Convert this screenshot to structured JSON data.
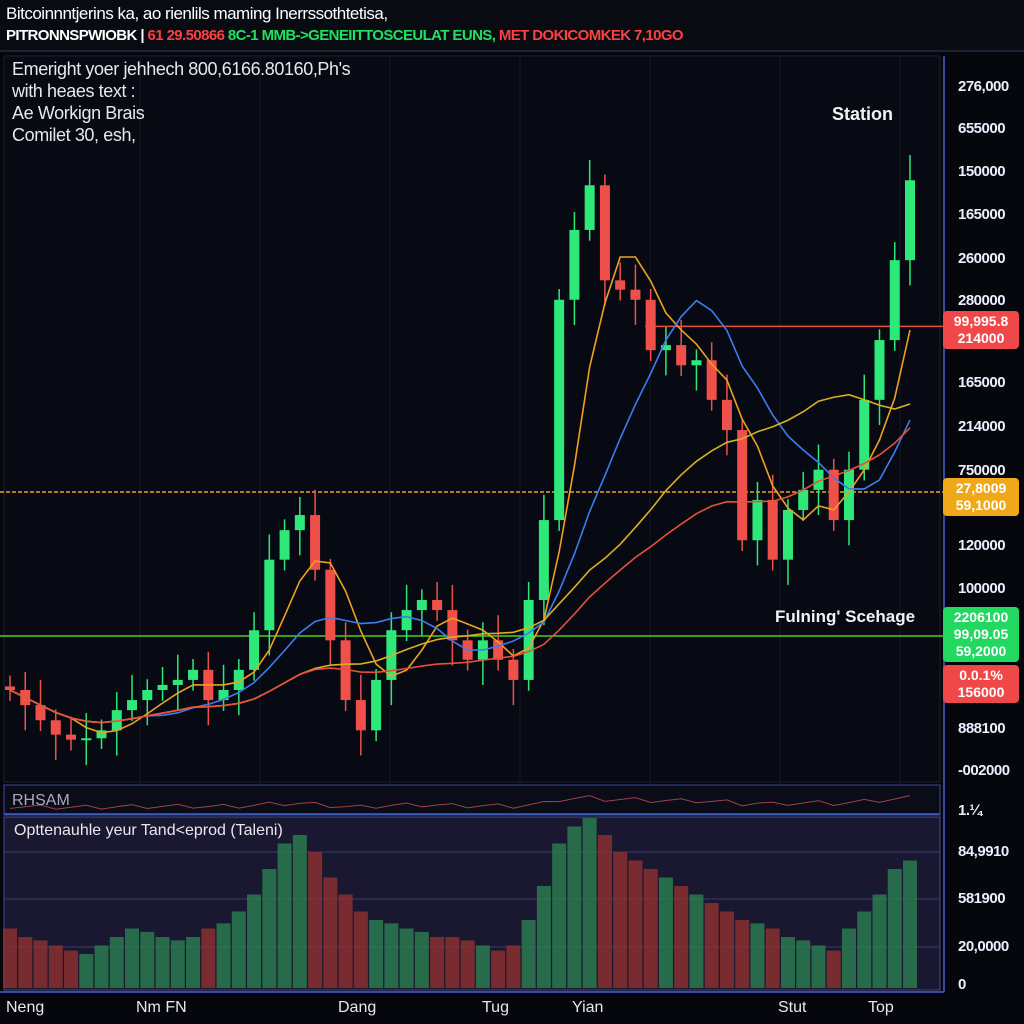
{
  "header": {
    "title": "Bitcoinnntjerins ka, ao rienlils maming Inerrssothtetisa,",
    "ticker": "PITRONNSPWIOBK |",
    "ticker_red": "61 29.50866",
    "ticker_green": "8C-1 MMB->GENEIITTOSCEULAT EUNS,",
    "ticker_red2": "MET DOKICOMKEK 7,10GO"
  },
  "info": {
    "line1": "Emeright yoer jehhech 800,6166.80160,Ph's",
    "line2": "with heaes text :",
    "line3": "Ae Workign Brais",
    "line4": "Comilet 30, esh,"
  },
  "annotations": {
    "station": "Station",
    "funding": "Fulning' Scehage"
  },
  "colors": {
    "up": "#2ee87a",
    "down": "#f0504a",
    "ma_fast": "#f0a020",
    "ma_blue": "#3d7cf0",
    "ma_gold": "#d8b020",
    "ma_red": "#e8503a",
    "bg": "#05070d"
  },
  "price_axis": [
    "276,000",
    "655000",
    "150000",
    "165000",
    "260000",
    "280000",
    "165000",
    "214000",
    "750000",
    "120000",
    "100000",
    "888100",
    "-002000"
  ],
  "badges": {
    "red1": [
      "99,995.8",
      "214000"
    ],
    "orange": [
      "27,8009",
      "59,1000"
    ],
    "green": [
      "2206100",
      "99,09.05",
      "59,2000"
    ],
    "red2": [
      "0.0.1%",
      "156000"
    ]
  },
  "indicator": {
    "label": "RHSAM",
    "axis": "1.¼"
  },
  "volume": {
    "label": "Opttenauhle yeur Tand<eprod (Taleni)",
    "axis": [
      "84,9910",
      "581900",
      "20,0000",
      "0"
    ]
  },
  "x_axis": [
    "Neng",
    "Nm FN",
    "Dang",
    "Tug",
    "Yian",
    "Stut",
    "Top"
  ],
  "chart_data": {
    "type": "candlestick",
    "ylim": [
      0,
      100
    ],
    "grid": true,
    "close": [
      12.5,
      10.4,
      8.3,
      6.3,
      5.6,
      5.8,
      6.9,
      9.7,
      11.1,
      12.5,
      13.2,
      13.9,
      15.3,
      11.1,
      12.5,
      15.3,
      20.8,
      30.6,
      34.7,
      36.8,
      29.2,
      19.4,
      11.1,
      6.9,
      13.9,
      20.8,
      23.6,
      25,
      23.6,
      19.4,
      16.7,
      19.4,
      16.7,
      13.9,
      25,
      36.1,
      66.7,
      76.4,
      82.6,
      69.4,
      68.1,
      66.7,
      59.7,
      60.4,
      57.6,
      58.3,
      52.8,
      48.6,
      33.3,
      38.9,
      30.6,
      37.5,
      40.3,
      43.1,
      36.1,
      43.1,
      52.8,
      61.1,
      72.2,
      83.3
    ],
    "volume": [
      35,
      30,
      28,
      25,
      22,
      20,
      25,
      30,
      35,
      33,
      30,
      28,
      30,
      35,
      38,
      45,
      55,
      70,
      85,
      90,
      80,
      65,
      55,
      45,
      40,
      38,
      35,
      33,
      30,
      30,
      28,
      25,
      22,
      25,
      40,
      60,
      85,
      95,
      100,
      90,
      80,
      75,
      70,
      65,
      60,
      55,
      50,
      45,
      40,
      38,
      35,
      30,
      28,
      25,
      22,
      35,
      45,
      55,
      70,
      75
    ],
    "moving_averages": [
      5,
      10,
      20,
      30
    ],
    "levels": [
      {
        "value": 63,
        "color": "#e8503a"
      },
      {
        "value": 40,
        "color": "#f0a020"
      },
      {
        "value": 20,
        "color": "#4ad020"
      }
    ]
  }
}
